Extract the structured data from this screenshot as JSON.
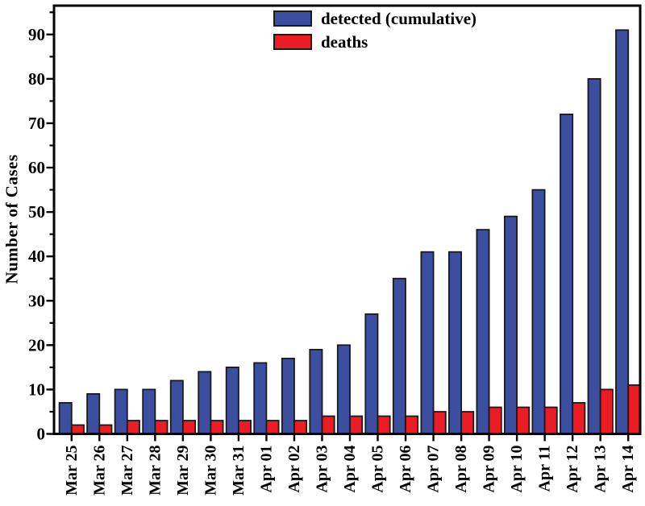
{
  "figure": {
    "ylabel": "Number of Cases"
  },
  "chart_data": {
    "type": "bar",
    "title": "",
    "xlabel": "",
    "ylabel": "Number of Cases",
    "categories": [
      "Mar 25",
      "Mar 26",
      "Mar 27",
      "Mar 28",
      "Mar 29",
      "Mar 30",
      "Mar 31",
      "Apr 01",
      "Apr 02",
      "Apr 03",
      "Apr 04",
      "Apr 05",
      "Apr 06",
      "Apr 07",
      "Apr 08",
      "Apr 09",
      "Apr 10",
      "Apr 11",
      "Apr 12",
      "Apr 13",
      "Apr 14"
    ],
    "series": [
      {
        "name": "detected (cumulative)",
        "color": "#3B4EA0",
        "values": [
          7,
          9,
          10,
          10,
          12,
          14,
          15,
          16,
          17,
          19,
          20,
          27,
          35,
          41,
          41,
          46,
          49,
          55,
          72,
          80,
          91
        ]
      },
      {
        "name": "deaths",
        "color": "#EB1C24",
        "values": [
          2,
          2,
          3,
          3,
          3,
          3,
          3,
          3,
          3,
          4,
          4,
          4,
          4,
          5,
          5,
          6,
          6,
          6,
          7,
          10,
          11
        ]
      }
    ],
    "ylim": [
      0,
      96.5
    ],
    "yticks_major": [
      0,
      10,
      20,
      30,
      40,
      50,
      60,
      70,
      80,
      90
    ],
    "yticks_minor": [
      5,
      15,
      25,
      35,
      45,
      55,
      65,
      75,
      85,
      95
    ],
    "grid": false,
    "legend_position": "top-center",
    "bar_outline": "#1A1A1A",
    "axis_color": "#000000",
    "x_tick_labels_rotation": -90
  }
}
